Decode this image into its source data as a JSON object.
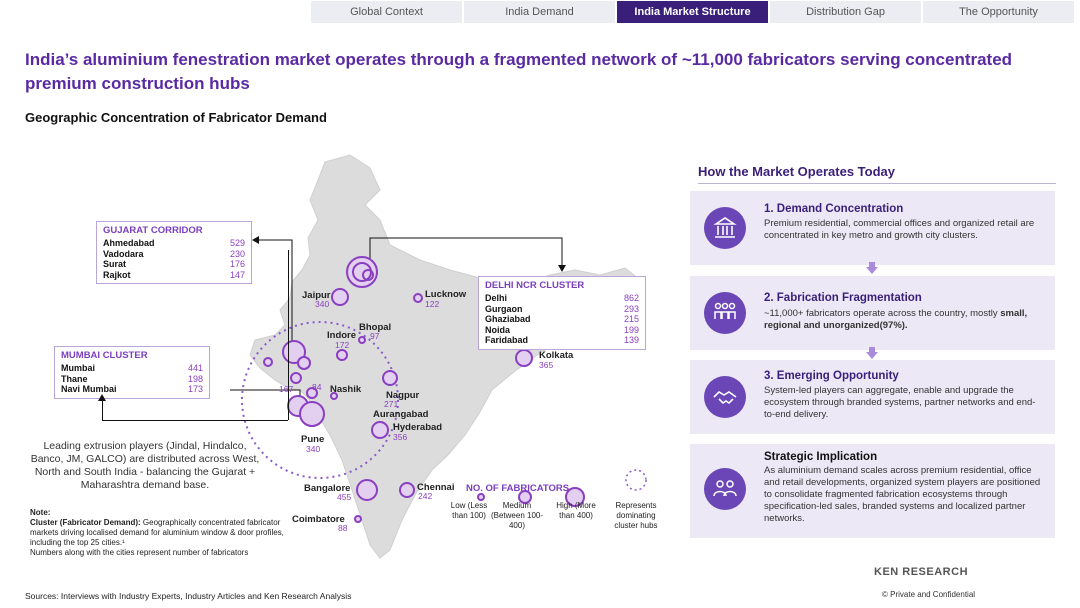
{
  "nav": {
    "tabs": [
      {
        "label": "Global Context",
        "width": 151
      },
      {
        "label": "India Demand",
        "width": 151
      },
      {
        "label": "India Market Structure",
        "width": 151,
        "active": true
      },
      {
        "label": "Distribution Gap",
        "width": 151
      },
      {
        "label": "The Opportunity",
        "width": 151
      }
    ]
  },
  "headline": "India’s aluminium fenestration market operates through a fragmented network of ~11,000 fabricators serving concentrated premium construction hubs",
  "subhead": "Geographic Concentration of Fabricator Demand",
  "clusters": {
    "gujarat": {
      "title": "GUJARAT CORRIDOR",
      "rows": [
        {
          "name": "Ahmedabad",
          "value": "529"
        },
        {
          "name": "Vadodara",
          "value": "230"
        },
        {
          "name": "Surat",
          "value": "176"
        },
        {
          "name": "Rajkot",
          "value": "147"
        }
      ]
    },
    "mumbai": {
      "title": "MUMBAI CLUSTER",
      "rows": [
        {
          "name": "Mumbai",
          "value": "441"
        },
        {
          "name": "Thane",
          "value": "198"
        },
        {
          "name": "Navi Mumbai",
          "value": "173"
        }
      ]
    },
    "delhi": {
      "title": "DELHI NCR CLUSTER",
      "rows": [
        {
          "name": "Delhi",
          "value": "862"
        },
        {
          "name": "Gurgaon",
          "value": "293"
        },
        {
          "name": "Ghaziabad",
          "value": "215"
        },
        {
          "name": "Noida",
          "value": "199"
        },
        {
          "name": "Faridabad",
          "value": "139"
        }
      ]
    }
  },
  "cities": {
    "jaipur": {
      "name": "Jaipur",
      "value": "340"
    },
    "lucknow": {
      "name": "Lucknow",
      "value": "122"
    },
    "bhopal": {
      "name": "Bhopal",
      "value": "97"
    },
    "indore": {
      "name": "Indore",
      "value": "172"
    },
    "kolkata": {
      "name": "Kolkata",
      "value": "365"
    },
    "nashik": {
      "name": "Nashik",
      "value": "84"
    },
    "pune_small": {
      "value": "167"
    },
    "nagpur": {
      "name": "Nagpur",
      "value": "271"
    },
    "aurangabad": {
      "name": "Aurangabad"
    },
    "hyderabad": {
      "name": "Hyderabad",
      "value": "356"
    },
    "pune": {
      "name": "Pune",
      "value": "340"
    },
    "bangalore": {
      "name": "Bangalore",
      "value": "455"
    },
    "chennai": {
      "name": "Chennai",
      "value": "242"
    },
    "coimbatore": {
      "name": "Coimbatore",
      "value": "88"
    }
  },
  "note_text": "Leading extrusion players (Jindal, Hindalco, Banco, JM, GALCO) are distributed across West, North and South India - balancing the Gujarat + Maharashtra demand base.",
  "note": {
    "heading": "Note:",
    "cluster_label": "Cluster (Fabricator Demand):",
    "cluster_desc": "Geographically concentrated fabricator markets driving localised demand for aluminium window & door profiles, including the top 25 cities.¹",
    "numbers_desc": "Numbers along with the cities represent number of fabricators"
  },
  "legend": {
    "title": "NO. OF FABRICATORS",
    "low": "Low (Less than 100)",
    "medium": "Medium (Between 100-400)",
    "high": "High (More than 400)",
    "hub": "Represents dominating cluster hubs"
  },
  "sources": "Sources: Interviews with Industry Experts, Industry Articles and Ken Research Analysis",
  "right_panel": {
    "title": "How the Market Operates Today",
    "cards": [
      {
        "title": "1. Demand Concentration",
        "desc": "Premium residential, commercial offices and organized retail are concentrated in key metro and growth city clusters.",
        "icon": "bank-icon"
      },
      {
        "title": "2. Fabrication Fragmentation",
        "desc_prefix": "~11,000+ fabricators operate across the country, mostly ",
        "desc_bold": "small, regional and unorganized(97%).",
        "icon": "workers-icon"
      },
      {
        "title": "3. Emerging Opportunity",
        "desc": "System-led players can aggregate, enable and upgrade the ecosystem through branded systems, partner networks and end-to-end delivery.",
        "icon": "handshake-icon"
      },
      {
        "title": "Strategic Implication",
        "desc": "As aluminium demand scales across premium residential, office and retail developments, organized system players are positioned to consolidate fragmented fabrication ecosystems through specification-led sales, branded systems and localized partner networks.",
        "icon": "people-icon"
      }
    ]
  },
  "logo": "KEN RESEARCH",
  "confidential": "©   Private and Confidential",
  "colors": {
    "primary": "#3a1f7a",
    "accent": "#8a3fc0",
    "card_bg": "#ece8f5"
  }
}
